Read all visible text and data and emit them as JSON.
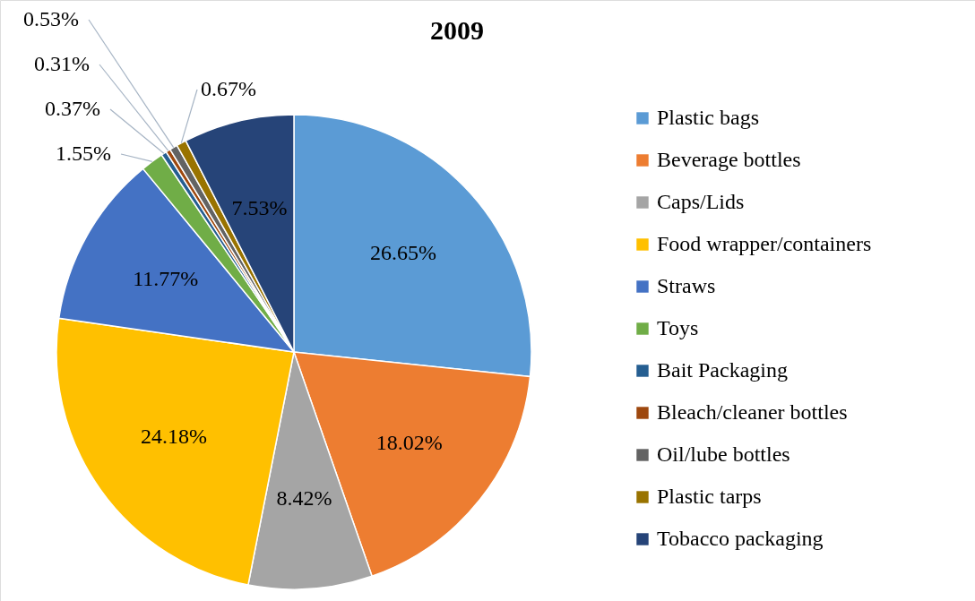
{
  "chart_data": {
    "type": "pie",
    "title": "2009",
    "categories": [
      "Plastic bags",
      "Beverage bottles",
      "Caps/Lids",
      "Food wrapper/containers",
      "Straws",
      "Toys",
      "Bait Packaging",
      "Bleach/cleaner bottles",
      "Oil/lube bottles",
      "Plastic tarps",
      "Tobacco packaging"
    ],
    "values": [
      26.65,
      18.02,
      8.42,
      24.18,
      11.77,
      1.55,
      0.37,
      0.31,
      0.53,
      0.67,
      7.53
    ],
    "value_labels": [
      "26.65%",
      "18.02%",
      "8.42%",
      "24.18%",
      "11.77%",
      "1.55%",
      "0.37%",
      "0.31%",
      "0.53%",
      "0.67%",
      "7.53%"
    ],
    "colors": [
      "#5b9bd5",
      "#ed7d31",
      "#a5a5a5",
      "#ffc000",
      "#4472c4",
      "#70ad47",
      "#255e91",
      "#9e480e",
      "#636363",
      "#997300",
      "#264478"
    ],
    "legend": "right"
  }
}
